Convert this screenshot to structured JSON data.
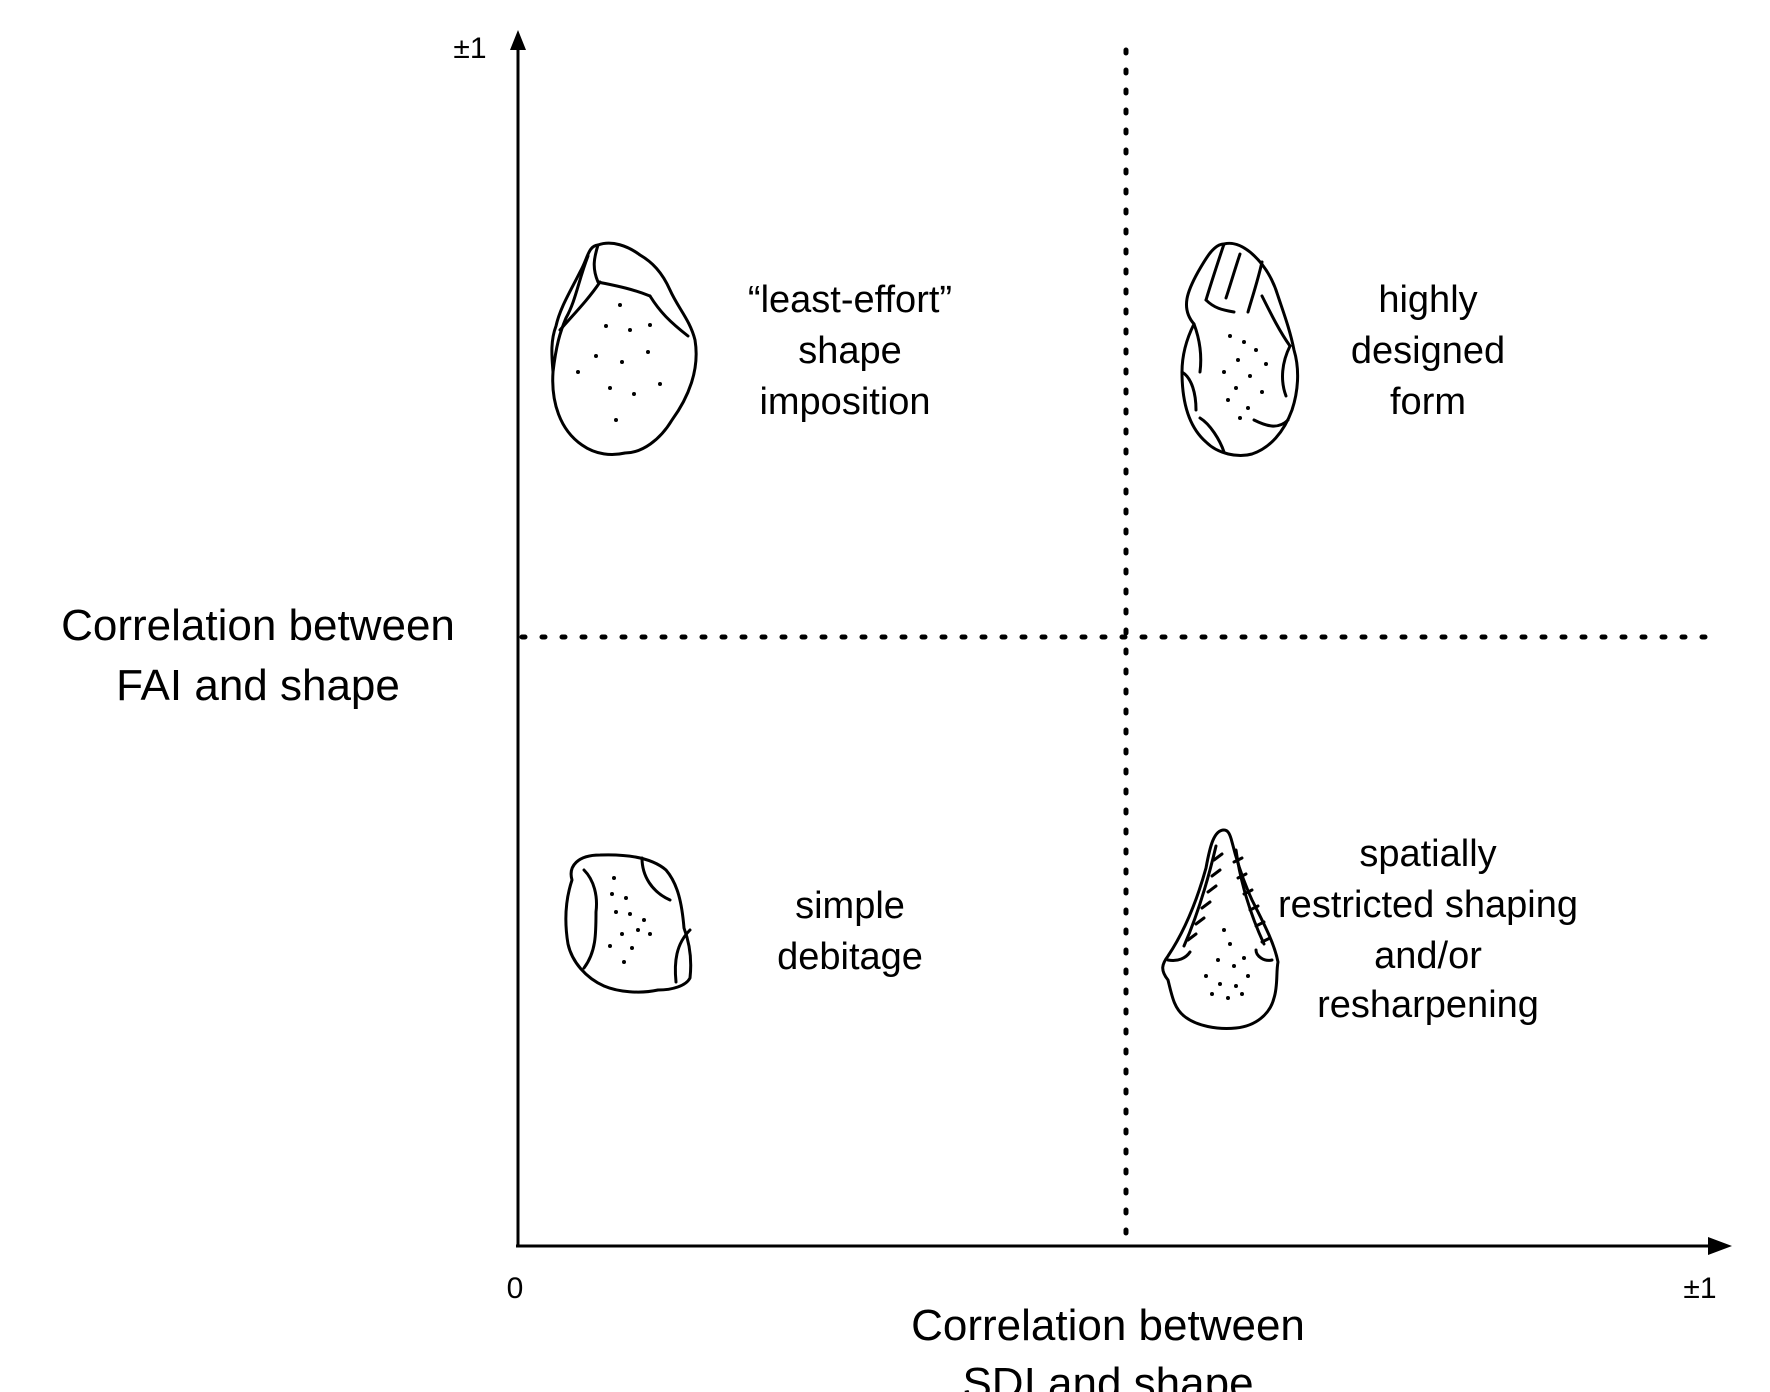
{
  "axes": {
    "x": {
      "title_line1": "Correlation between",
      "title_line2": "SDI and shape",
      "min_label": "0",
      "max_label": "±1"
    },
    "y": {
      "title_line1": "Correlation between",
      "title_line2": "FAI and shape",
      "max_label": "±1"
    }
  },
  "quadrants": {
    "top_left": {
      "lines": [
        "“least-effort”",
        "shape",
        "imposition"
      ],
      "icon": "unifacial-flake-drawing"
    },
    "top_right": {
      "lines": [
        "highly",
        "designed",
        "form"
      ],
      "icon": "bifacial-handaxe-drawing"
    },
    "bottom_left": {
      "lines": [
        "simple",
        "debitage"
      ],
      "icon": "simple-flake-drawing"
    },
    "bottom_right": {
      "lines": [
        "spatially",
        "restricted shaping",
        "and/or",
        "resharpening"
      ],
      "icon": "pointed-tool-drawing"
    }
  },
  "colors": {
    "ink": "#000000",
    "background": "#ffffff"
  }
}
